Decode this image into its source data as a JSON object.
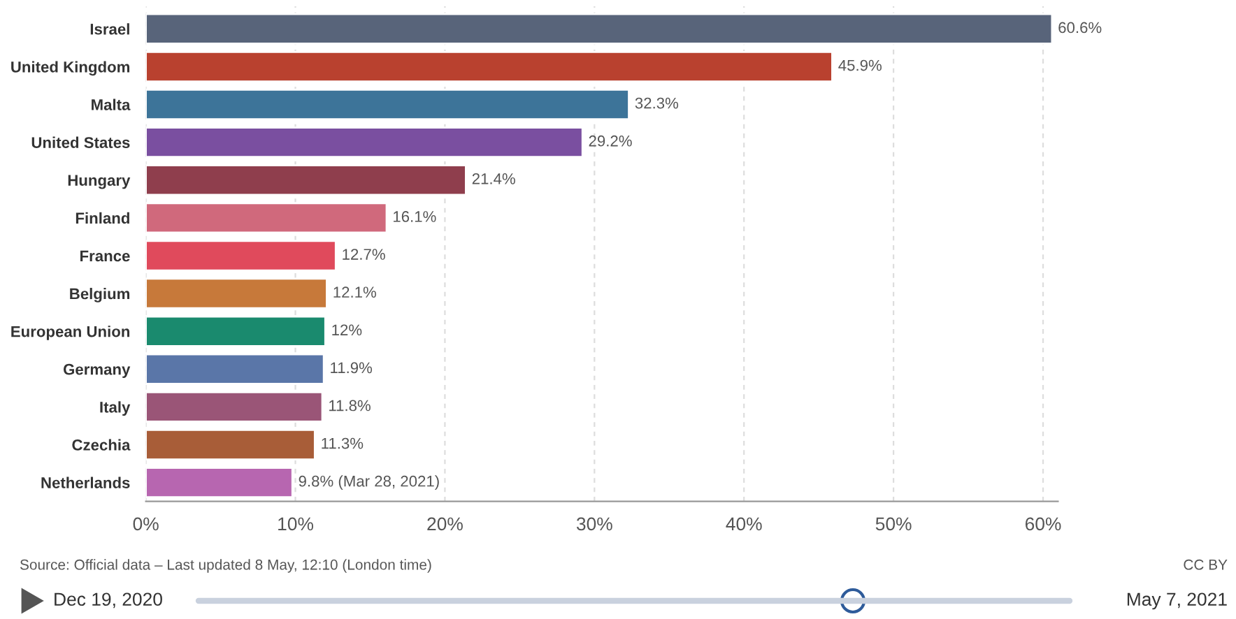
{
  "chart_data": {
    "type": "bar",
    "orientation": "horizontal",
    "categories": [
      "Israel",
      "United Kingdom",
      "Malta",
      "United States",
      "Hungary",
      "Finland",
      "France",
      "Belgium",
      "European Union",
      "Germany",
      "Italy",
      "Czechia",
      "Netherlands"
    ],
    "values": [
      60.6,
      45.9,
      32.3,
      29.2,
      21.4,
      16.1,
      12.7,
      12.1,
      12,
      11.9,
      11.8,
      11.3,
      9.8
    ],
    "colors": [
      "#58647a",
      "#b9412f",
      "#3d7499",
      "#7a4fa0",
      "#8f3e4d",
      "#d0697c",
      "#e04a5c",
      "#c7793a",
      "#1a8a6e",
      "#5a76a8",
      "#9a5577",
      "#a85d38",
      "#b766b0"
    ],
    "value_labels": [
      "60.6%",
      "45.9%",
      "32.3%",
      "29.2%",
      "21.4%",
      "16.1%",
      "12.7%",
      "12.1%",
      "12%",
      "11.9%",
      "11.8%",
      "11.3%",
      "9.8% (Mar 28, 2021)"
    ],
    "xlim": [
      0,
      61
    ],
    "xticks": [
      {
        "value": 0,
        "label": "0%"
      },
      {
        "value": 10,
        "label": "10%"
      },
      {
        "value": 20,
        "label": "20%"
      },
      {
        "value": 30,
        "label": "30%"
      },
      {
        "value": 40,
        "label": "40%"
      },
      {
        "value": 50,
        "label": "50%"
      },
      {
        "value": 60,
        "label": "60%"
      }
    ],
    "grid": "x",
    "annotations": [
      "Source: Official data – Last updated 8 May, 12:10 (London time)",
      "CC BY",
      "Dec 19, 2020",
      "May 7, 2021"
    ]
  }
}
